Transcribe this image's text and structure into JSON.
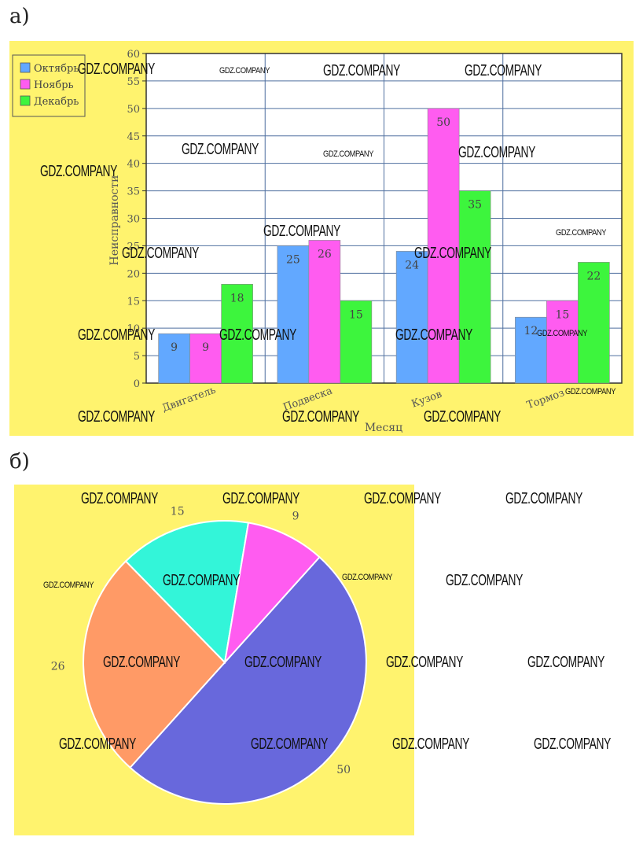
{
  "labels": {
    "part_a": "а)",
    "part_b": "б)"
  },
  "colors": {
    "background": "#fff36e",
    "plot_bg": "#ffffff",
    "grid": "#4f6f9f",
    "oct": "#62a8ff",
    "nov": "#ff5cf0",
    "dec": "#3df53d"
  },
  "chart_data": [
    {
      "type": "bar",
      "title": "",
      "xlabel": "Месяц",
      "ylabel": "Неисправности",
      "ylim": [
        0,
        60
      ],
      "yticks": [
        0,
        5,
        10,
        15,
        20,
        25,
        30,
        35,
        40,
        45,
        50,
        55,
        60
      ],
      "categories": [
        "Двигатель",
        "Подвеска",
        "Кузов",
        "Тормоз"
      ],
      "series": [
        {
          "name": "Октябрь",
          "color": "#62a8ff",
          "values": [
            9,
            25,
            24,
            12
          ]
        },
        {
          "name": "Ноябрь",
          "color": "#ff5cf0",
          "values": [
            9,
            26,
            50,
            15
          ]
        },
        {
          "name": "Декабрь",
          "color": "#3df53d",
          "values": [
            18,
            15,
            35,
            22
          ]
        }
      ],
      "legend": "top-left",
      "grid": true
    },
    {
      "type": "pie",
      "values": [
        50,
        26,
        15,
        9
      ],
      "labels": [
        "50",
        "26",
        "15",
        "9"
      ],
      "colors": [
        "#6868dc",
        "#ff9a66",
        "#33f5d9",
        "#ff5cf0"
      ]
    }
  ],
  "watermark": "GDZ.COMPANY"
}
